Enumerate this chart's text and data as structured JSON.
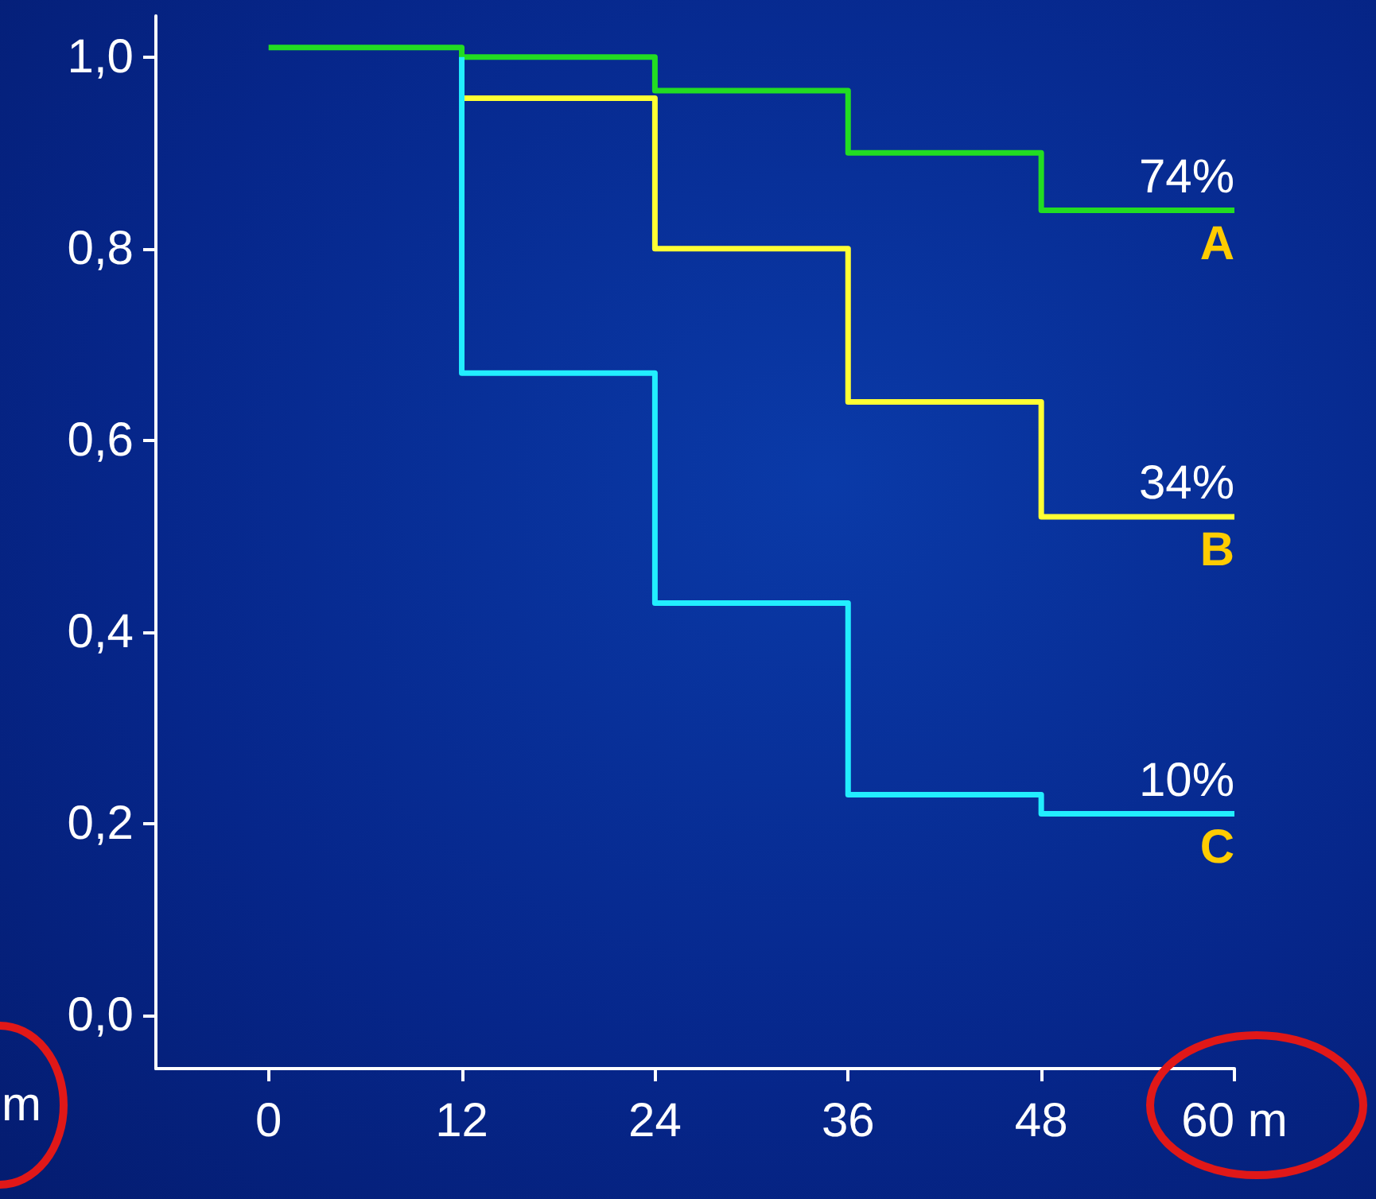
{
  "chart_data": {
    "type": "step",
    "series": [
      {
        "color": "#22dd22",
        "x": [
          0,
          12,
          24,
          36,
          48,
          60
        ],
        "values": [
          1.01,
          1.0,
          0.965,
          0.9,
          0.84,
          0.84
        ]
      },
      {
        "color": "#ffff33",
        "x": [
          12,
          24,
          36,
          48,
          60
        ],
        "values": [
          0.957,
          0.8,
          0.64,
          0.52,
          0.52
        ]
      },
      {
        "color": "#22eeff",
        "x": [
          12,
          12,
          24,
          36,
          48,
          60
        ],
        "values": [
          1.0,
          0.67,
          0.43,
          0.23,
          0.21,
          0.21
        ]
      }
    ],
    "xlim": [
      -7,
      60
    ],
    "xticks": [
      0,
      12,
      24,
      36,
      48,
      {
        "value": 60,
        "label": "60 m"
      }
    ],
    "ylim": [
      -0.056,
      1.043
    ],
    "yticks": [
      {
        "value": 0,
        "label": "0,0"
      },
      {
        "value": 0.2,
        "label": "0,2"
      },
      {
        "value": 0.4,
        "label": "0,4"
      },
      {
        "value": 0.6,
        "label": "0,6"
      },
      {
        "value": 0.8,
        "label": "0,8"
      },
      {
        "value": 1.0,
        "label": "1,0"
      }
    ],
    "annotations": [
      "74%",
      "A",
      "34%",
      "B",
      "10%",
      "C",
      "m"
    ],
    "grid": false,
    "marker": "none",
    "line_style": "solid"
  }
}
